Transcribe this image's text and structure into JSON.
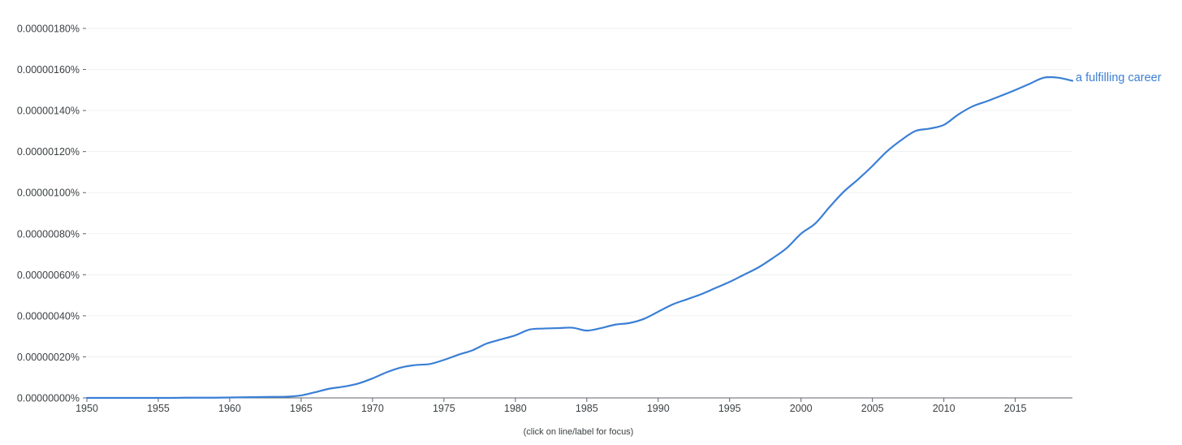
{
  "chart_data": {
    "type": "line",
    "title": "",
    "xlabel": "",
    "ylabel": "",
    "x": [
      1950,
      1951,
      1952,
      1953,
      1954,
      1955,
      1956,
      1957,
      1958,
      1959,
      1960,
      1961,
      1962,
      1963,
      1964,
      1965,
      1966,
      1967,
      1968,
      1969,
      1970,
      1971,
      1972,
      1973,
      1974,
      1975,
      1976,
      1977,
      1978,
      1979,
      1980,
      1981,
      1982,
      1983,
      1984,
      1985,
      1986,
      1987,
      1988,
      1989,
      1990,
      1991,
      1992,
      1993,
      1994,
      1995,
      1996,
      1997,
      1998,
      1999,
      2000,
      2001,
      2002,
      2003,
      2004,
      2005,
      2006,
      2007,
      2008,
      2009,
      2010,
      2011,
      2012,
      2013,
      2014,
      2015,
      2016,
      2017,
      2018,
      2019
    ],
    "series": [
      {
        "name": "a fulfilling career",
        "values": [
          0.0,
          0.0,
          0.0,
          0.0,
          0.0,
          0.0,
          0.0,
          0.001,
          0.001,
          0.001,
          0.002,
          0.003,
          0.004,
          0.005,
          0.006,
          0.012,
          0.028,
          0.045,
          0.055,
          0.07,
          0.095,
          0.125,
          0.148,
          0.16,
          0.165,
          0.185,
          0.21,
          0.232,
          0.265,
          0.285,
          0.305,
          0.333,
          0.338,
          0.34,
          0.342,
          0.328,
          0.34,
          0.357,
          0.365,
          0.385,
          0.42,
          0.455,
          0.48,
          0.505,
          0.535,
          0.565,
          0.6,
          0.635,
          0.68,
          0.73,
          0.8,
          0.85,
          0.93,
          1.005,
          1.065,
          1.13,
          1.2,
          1.255,
          1.3,
          1.312,
          1.33,
          1.38,
          1.42,
          1.445,
          1.472,
          1.5,
          1.53,
          1.56,
          1.56,
          1.545
        ]
      }
    ],
    "xlim": [
      1950,
      2019
    ],
    "ylim": [
      0,
      1.8
    ],
    "x_ticks": [
      1950,
      1955,
      1960,
      1965,
      1970,
      1975,
      1980,
      1985,
      1990,
      1995,
      2000,
      2005,
      2010,
      2015
    ],
    "x_tick_labels": [
      "1950",
      "1955",
      "1960",
      "1965",
      "1970",
      "1975",
      "1980",
      "1985",
      "1990",
      "1995",
      "2000",
      "2005",
      "2010",
      "2015"
    ],
    "y_ticks": [
      0,
      0.2,
      0.4,
      0.6,
      0.8,
      1.0,
      1.2,
      1.4,
      1.6,
      1.8
    ],
    "y_tick_labels": [
      "0.00000000%",
      "0.00000020%",
      "0.00000040%",
      "0.00000060%",
      "0.00000080%",
      "0.00000100%",
      "0.00000120%",
      "0.00000140%",
      "0.00000160%",
      "0.00000180%"
    ],
    "y_unit_note": "values are in units of 0.000001%",
    "grid": true,
    "legend": "inline-end-label",
    "colors": {
      "series": "#3a7fd5",
      "axis": "#5f6368",
      "grid": "#f1f1f1",
      "text": "#3c4043"
    }
  },
  "footer": {
    "hint": "(click on line/label for focus)"
  }
}
